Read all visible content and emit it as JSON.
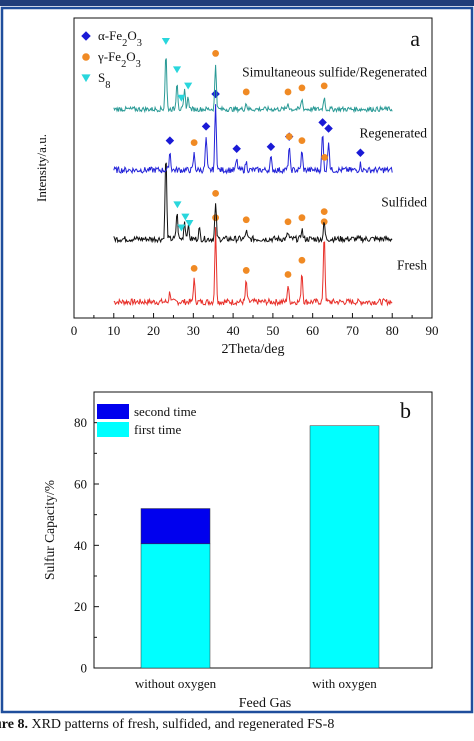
{
  "colors": {
    "frame": "#1f4e9c",
    "top_bar": "#1f3d7a"
  },
  "caption": {
    "label": "ure 8.",
    "text": " XRD patterns of fresh, sulfided, and regenerated FS-8"
  },
  "chart_data": [
    {
      "type": "line",
      "panel_label": "a",
      "xlabel": "2Theta/deg",
      "ylabel": "Intensity/a.u.",
      "xlim": [
        0,
        90
      ],
      "xticks": [
        0,
        10,
        20,
        30,
        40,
        50,
        60,
        70,
        80,
        90
      ],
      "legend": [
        {
          "label": "α-Fe₂O₃",
          "marker": "diamond",
          "color": "#1a1ad6"
        },
        {
          "label": "γ-Fe₂O₃",
          "marker": "circle",
          "color": "#f08a24"
        },
        {
          "label": "S₈",
          "marker": "triangle-down",
          "color": "#29d6dc"
        }
      ],
      "series": [
        {
          "name": "Fresh",
          "color": "#e8302a",
          "baseline": 0.5,
          "noise": 0.15,
          "peaks": [
            [
              24.1,
              0.5
            ],
            [
              30.2,
              1.1
            ],
            [
              35.6,
              3.6
            ],
            [
              43.3,
              1.0
            ],
            [
              53.8,
              0.8
            ],
            [
              57.3,
              1.5
            ],
            [
              62.9,
              3.4
            ]
          ],
          "markers": [
            {
              "kind": "circle",
              "x": [
                30.2,
                35.6,
                43.3,
                53.8,
                57.3,
                62.9
              ]
            }
          ]
        },
        {
          "name": "Sulfided",
          "color": "#111111",
          "baseline": 3.6,
          "noise": 0.15,
          "peaks": [
            [
              23.1,
              4.2
            ],
            [
              25.9,
              1.3
            ],
            [
              27.8,
              0.9
            ],
            [
              28.7,
              0.7
            ],
            [
              31.5,
              0.5
            ],
            [
              35.6,
              1.7
            ],
            [
              43.3,
              0.4
            ],
            [
              53.8,
              0.3
            ],
            [
              57.3,
              0.5
            ],
            [
              62.9,
              0.8
            ]
          ],
          "markers": [
            {
              "kind": "triangle",
              "x": [
                26.0,
                27.0,
                28.0,
                29.0
              ]
            },
            {
              "kind": "circle",
              "x": [
                35.6,
                43.3,
                53.8,
                57.3,
                62.9
              ]
            }
          ]
        },
        {
          "name": "Regenerated",
          "color": "#2323d8",
          "baseline": 7.0,
          "noise": 0.15,
          "peaks": [
            [
              24.1,
              0.9
            ],
            [
              30.2,
              0.8
            ],
            [
              33.2,
              1.6
            ],
            [
              35.6,
              3.2
            ],
            [
              40.9,
              0.5
            ],
            [
              43.3,
              0.4
            ],
            [
              49.5,
              0.6
            ],
            [
              54.1,
              1.1
            ],
            [
              57.3,
              0.9
            ],
            [
              62.5,
              1.8
            ],
            [
              64.0,
              1.5
            ],
            [
              72.0,
              0.3
            ]
          ],
          "markers": [
            {
              "kind": "diamond",
              "x": [
                24.1,
                33.2,
                35.6,
                40.9,
                49.5,
                54.1,
                62.5,
                64.0,
                72.0
              ]
            },
            {
              "kind": "circle",
              "x": [
                30.2,
                54.1,
                57.3,
                63.0
              ]
            }
          ]
        },
        {
          "name": "Simultaneous sulfide/Regenerated",
          "color": "#2a9a96",
          "baseline": 10.0,
          "noise": 0.12,
          "peaks": [
            [
              23.1,
              2.8
            ],
            [
              25.9,
              1.4
            ],
            [
              27.8,
              0.9
            ],
            [
              28.7,
              0.6
            ],
            [
              35.6,
              2.2
            ],
            [
              43.3,
              0.3
            ],
            [
              53.8,
              0.3
            ],
            [
              57.3,
              0.5
            ],
            [
              62.9,
              0.6
            ]
          ],
          "markers": [
            {
              "kind": "triangle",
              "x": [
                23.1,
                25.9,
                27.0,
                28.7
              ]
            },
            {
              "kind": "circle",
              "x": [
                35.6,
                43.3,
                53.8,
                57.3,
                62.9
              ]
            }
          ]
        }
      ]
    },
    {
      "type": "bar",
      "stacked": true,
      "panel_label": "b",
      "xlabel": "Feed Gas",
      "ylabel": "Sulfur Capacity/%",
      "categories": [
        "without oxygen",
        "with oxygen"
      ],
      "ylim": [
        0,
        90
      ],
      "yticks": [
        0,
        20,
        40,
        60,
        80
      ],
      "legend_position": "top-left",
      "series": [
        {
          "name": "first time",
          "color": "#00ffff",
          "values": [
            40.5,
            79
          ]
        },
        {
          "name": "second time",
          "color": "#0000ee",
          "values": [
            11.5,
            0
          ]
        }
      ]
    }
  ]
}
